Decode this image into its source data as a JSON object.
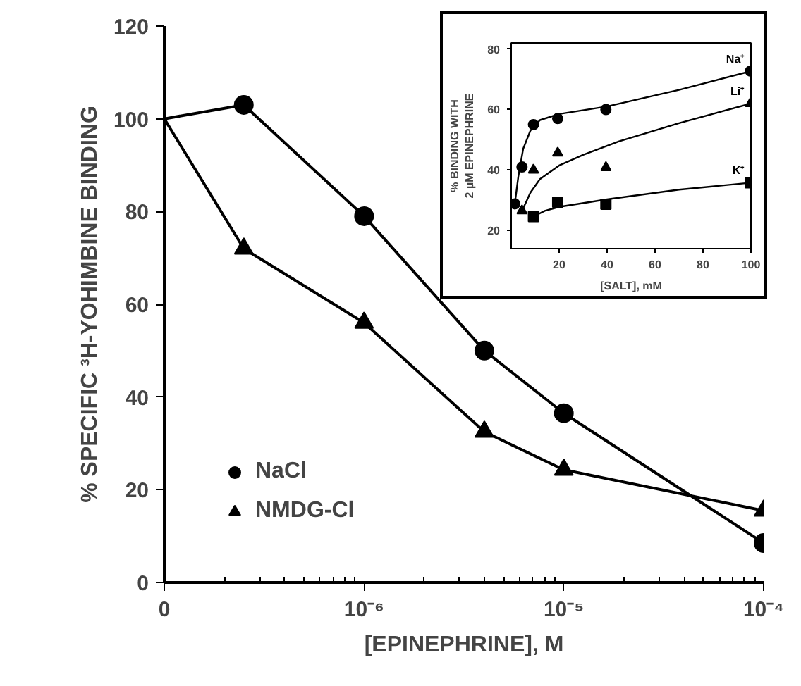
{
  "chart_data": [
    {
      "type": "line",
      "xlabel": "[EPINEPHRINE], M",
      "ylabel": "% SPECIFIC ³H-YOHIMBINE BINDING",
      "log": "x",
      "x": [
        1e-07,
        2.5e-07,
        1e-06,
        4e-06,
        1e-05,
        0.0001
      ],
      "xlim": [
        1e-07,
        0.0001
      ],
      "xticks": [
        {
          "value": 1e-07,
          "label": "0"
        },
        {
          "value": 1e-06,
          "label": "10⁻⁶"
        },
        {
          "value": 1e-05,
          "label": "10⁻⁵"
        },
        {
          "value": 0.0001,
          "label": "10⁻⁴"
        }
      ],
      "ylim": [
        0,
        120
      ],
      "yticks": [
        0,
        20,
        40,
        60,
        80,
        100,
        120
      ],
      "grid": false,
      "legend": "bottom left",
      "series": [
        {
          "name": "NaCl",
          "color": "#000000",
          "marker": "circle",
          "values": [
            100,
            103,
            79,
            50,
            36.5,
            8.5
          ]
        },
        {
          "name": "NMDG-Cl",
          "color": "#000000",
          "marker": "triangle",
          "values": [
            100,
            72,
            56,
            32.5,
            24.3,
            15.5
          ]
        }
      ]
    },
    {
      "type": "scatter",
      "xlabel": "[SALT], mM",
      "ylabel": "% BINDING WITH\n2 µM EPINEPHRINE",
      "xlim": [
        0,
        100
      ],
      "xticks": [
        20,
        40,
        60,
        80,
        100
      ],
      "ylim": [
        14,
        82
      ],
      "yticks": [
        20,
        40,
        60,
        80
      ],
      "grid": false,
      "legend": false,
      "series": [
        {
          "name": "Na⁺",
          "color": "#000000",
          "marker": "circle",
          "x": [
            1.5,
            4.5,
            9.3,
            19.4,
            39.5,
            99.8
          ],
          "values": [
            28.8,
            41,
            55,
            57,
            60,
            72.7
          ]
        },
        {
          "name": "Li⁺",
          "color": "#000000",
          "marker": "triangle",
          "x": [
            4.5,
            9.3,
            19.4,
            39.5,
            99.8
          ],
          "values": [
            26.5,
            40,
            45.6,
            40.8,
            62
          ]
        },
        {
          "name": "K⁺",
          "color": "#000000",
          "marker": "square",
          "x": [
            9.3,
            19.4,
            39.5,
            99.8
          ],
          "values": [
            24.6,
            29.3,
            28.7,
            35.8
          ]
        },
        {
          "type": "line",
          "color": "#000000",
          "marker": "none",
          "x": [
            1.5,
            3,
            5,
            8,
            12,
            20,
            40,
            70,
            100
          ],
          "values": [
            28.8,
            38,
            47,
            53,
            56.5,
            58.5,
            61,
            66.5,
            72.7
          ]
        },
        {
          "type": "line",
          "color": "#000000",
          "marker": "none",
          "x": [
            4.5,
            6,
            8,
            12,
            20,
            30,
            45,
            70,
            100
          ],
          "values": [
            26.5,
            29,
            32.5,
            37,
            41.5,
            45,
            49.5,
            55.5,
            62
          ]
        },
        {
          "type": "line",
          "color": "#000000",
          "marker": "none",
          "x": [
            9.3,
            14,
            20,
            40,
            70,
            100
          ],
          "values": [
            24.6,
            26.5,
            27.8,
            30.3,
            33.5,
            35.8
          ]
        }
      ]
    }
  ]
}
